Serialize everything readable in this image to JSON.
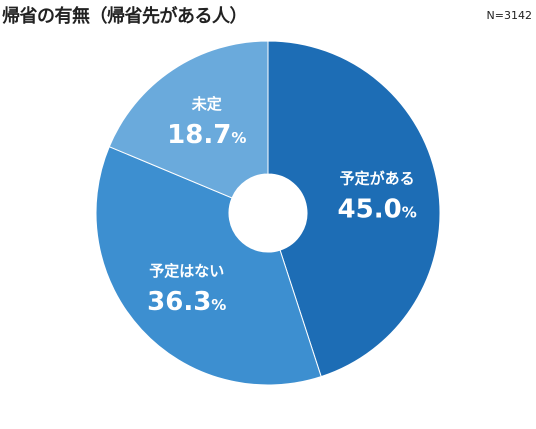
{
  "title": "帰省の有無（帰省先がある人）",
  "note": "N=3142",
  "chart_data": {
    "type": "pie",
    "donut": true,
    "title": "帰省の有無（帰省先がある人）",
    "sample_size": "N=3142",
    "unit": "%",
    "start": "top (12 o'clock), clockwise",
    "slices": [
      {
        "label": "予定がある",
        "value": 45.0,
        "value_text": "45.0",
        "color": "#1d6db5"
      },
      {
        "label": "予定はない",
        "value": 36.3,
        "value_text": "36.3",
        "color": "#3d8fd0"
      },
      {
        "label": "未定",
        "value": 18.7,
        "value_text": "18.7",
        "color": "#6aaadc"
      }
    ]
  }
}
